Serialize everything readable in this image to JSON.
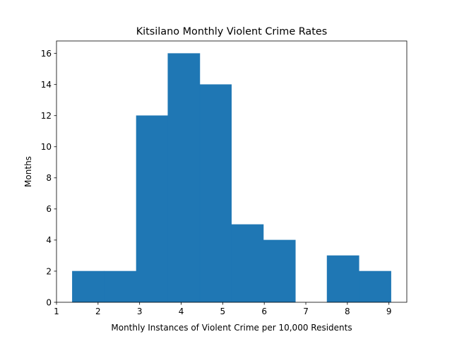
{
  "chart_data": {
    "type": "bar",
    "title": "Kitsilano Monthly Violent Crime Rates",
    "xlabel": "Monthly Instances of Violent Crime per 10,000 Residents",
    "ylabel": "Months",
    "xlim": [
      1.0,
      9.43
    ],
    "ylim": [
      0,
      16.8
    ],
    "x_ticks": [
      1,
      2,
      3,
      4,
      5,
      6,
      7,
      8,
      9
    ],
    "y_ticks": [
      0,
      2,
      4,
      6,
      8,
      10,
      12,
      14,
      16
    ],
    "bins": [
      {
        "start": 1.38,
        "end": 2.15,
        "value": 2
      },
      {
        "start": 2.15,
        "end": 2.92,
        "value": 2
      },
      {
        "start": 2.92,
        "end": 3.68,
        "value": 12
      },
      {
        "start": 3.68,
        "end": 4.45,
        "value": 16
      },
      {
        "start": 4.45,
        "end": 5.21,
        "value": 14
      },
      {
        "start": 5.21,
        "end": 5.98,
        "value": 5
      },
      {
        "start": 5.98,
        "end": 6.75,
        "value": 4
      },
      {
        "start": 6.75,
        "end": 7.51,
        "value": 0
      },
      {
        "start": 7.51,
        "end": 8.28,
        "value": 3
      },
      {
        "start": 8.28,
        "end": 9.05,
        "value": 2
      }
    ],
    "bar_color": "#1f77b4",
    "grid": false,
    "legend": "none"
  }
}
